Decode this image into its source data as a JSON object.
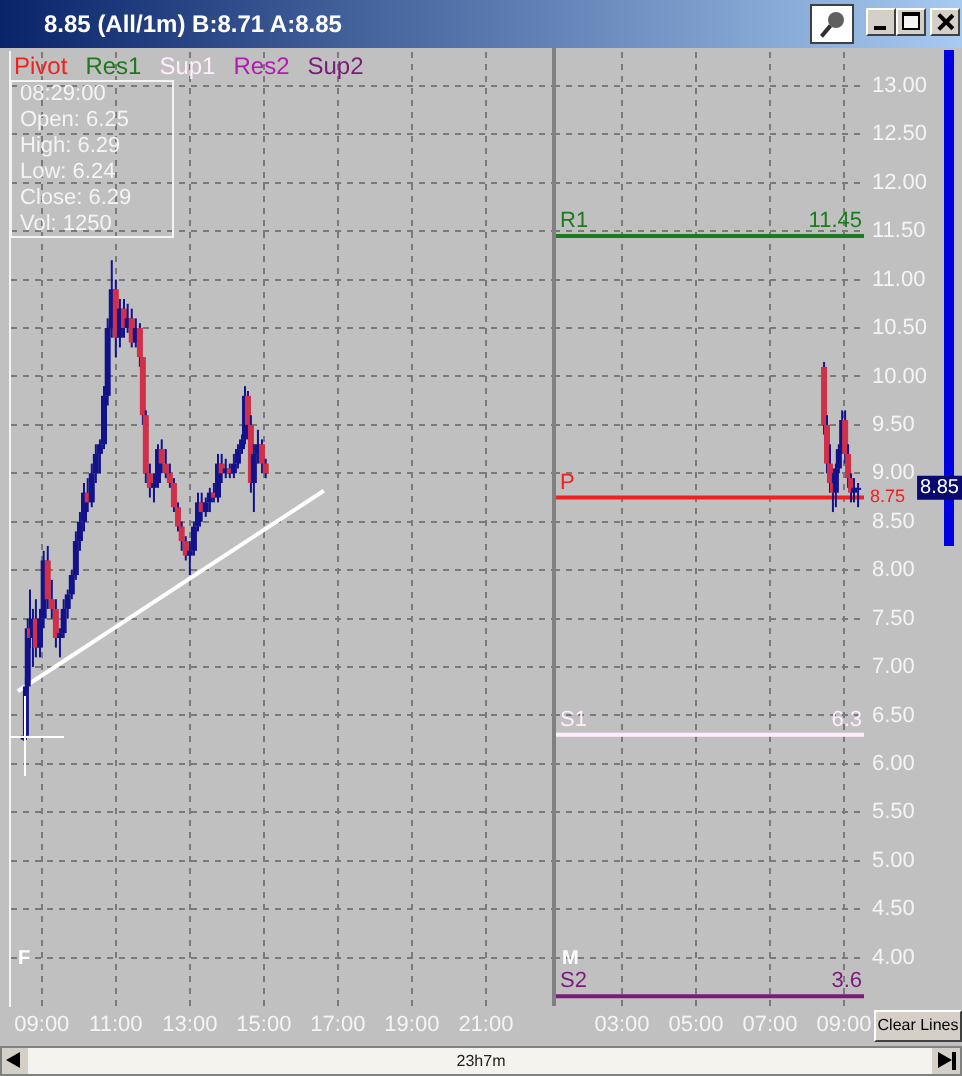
{
  "chart_data": [
    {
      "type": "candlestick",
      "title": "8.85 (All/1m) B:8.71 A:8.85",
      "color": "#12128a",
      "x": [
        8.51,
        8.57,
        8.62,
        8.68,
        8.76,
        8.84,
        8.95,
        9.05,
        9.16,
        9.27,
        9.38,
        9.49,
        9.59,
        9.7,
        9.81,
        9.92,
        10.03,
        10.14,
        10.24,
        10.35,
        10.46,
        10.57,
        10.68,
        10.78,
        10.89,
        11.0,
        11.11,
        11.22,
        11.32,
        11.43,
        11.54,
        11.65,
        11.73,
        11.81,
        11.92,
        12.03,
        12.14,
        12.24,
        12.35,
        12.46,
        12.57,
        12.68,
        12.78,
        12.89,
        13.0,
        13.11,
        13.22,
        13.32,
        13.43,
        13.54,
        13.65,
        13.76,
        13.86,
        13.97,
        14.08,
        14.19,
        14.3,
        14.41,
        14.49,
        14.57,
        14.65,
        14.73,
        14.84,
        14.95,
        15.05
      ],
      "ohlc": [
        [
          6.25,
          6.29,
          6.24,
          6.29
        ],
        [
          6.29,
          6.9,
          6.25,
          6.8
        ],
        [
          6.8,
          7.5,
          6.75,
          7.4
        ],
        [
          7.4,
          7.8,
          7.2,
          7.3
        ],
        [
          7.3,
          7.6,
          7.0,
          7.5
        ],
        [
          7.5,
          7.7,
          7.1,
          7.2
        ],
        [
          7.2,
          7.6,
          7.1,
          7.5
        ],
        [
          7.5,
          8.2,
          7.4,
          8.1
        ],
        [
          8.1,
          8.25,
          7.6,
          7.7
        ],
        [
          7.7,
          7.9,
          7.5,
          7.6
        ],
        [
          7.6,
          7.7,
          7.2,
          7.3
        ],
        [
          7.3,
          7.4,
          7.1,
          7.35
        ],
        [
          7.35,
          7.7,
          7.3,
          7.6
        ],
        [
          7.6,
          7.8,
          7.5,
          7.75
        ],
        [
          7.75,
          8.0,
          7.7,
          7.95
        ],
        [
          7.95,
          8.4,
          7.9,
          8.3
        ],
        [
          8.3,
          8.6,
          8.2,
          8.5
        ],
        [
          8.5,
          8.9,
          8.4,
          8.8
        ],
        [
          8.8,
          8.95,
          8.6,
          8.7
        ],
        [
          8.7,
          9.1,
          8.65,
          9.0
        ],
        [
          9.0,
          9.3,
          8.9,
          9.2
        ],
        [
          9.2,
          9.35,
          9.0,
          9.3
        ],
        [
          9.3,
          9.9,
          9.25,
          9.8
        ],
        [
          9.8,
          10.6,
          9.7,
          10.5
        ],
        [
          10.5,
          11.2,
          10.4,
          10.9
        ],
        [
          10.9,
          11.0,
          10.2,
          10.4
        ],
        [
          10.4,
          10.8,
          10.3,
          10.7
        ],
        [
          10.7,
          10.8,
          10.4,
          10.5
        ],
        [
          10.5,
          10.75,
          10.45,
          10.6
        ],
        [
          10.6,
          10.7,
          10.3,
          10.35
        ],
        [
          10.35,
          10.6,
          10.3,
          10.5
        ],
        [
          10.5,
          10.55,
          10.1,
          10.2
        ],
        [
          10.2,
          10.2,
          9.5,
          9.6
        ],
        [
          9.6,
          9.65,
          8.9,
          9.0
        ],
        [
          9.0,
          9.1,
          8.75,
          8.85
        ],
        [
          8.85,
          9.0,
          8.7,
          8.9
        ],
        [
          8.9,
          9.3,
          8.85,
          9.25
        ],
        [
          9.25,
          9.35,
          9.0,
          9.1
        ],
        [
          9.1,
          9.25,
          8.95,
          9.0
        ],
        [
          9.0,
          9.1,
          8.85,
          8.9
        ],
        [
          8.9,
          8.95,
          8.6,
          8.65
        ],
        [
          8.65,
          8.7,
          8.4,
          8.45
        ],
        [
          8.45,
          8.5,
          8.2,
          8.3
        ],
        [
          8.3,
          8.35,
          8.1,
          8.15
        ],
        [
          8.15,
          8.3,
          7.95,
          8.2
        ],
        [
          8.2,
          8.5,
          8.15,
          8.45
        ],
        [
          8.45,
          8.8,
          8.4,
          8.7
        ],
        [
          8.7,
          8.8,
          8.5,
          8.6
        ],
        [
          8.6,
          8.75,
          8.55,
          8.7
        ],
        [
          8.7,
          8.85,
          8.6,
          8.8
        ],
        [
          8.8,
          8.9,
          8.7,
          8.75
        ],
        [
          8.75,
          9.2,
          8.7,
          9.1
        ],
        [
          9.1,
          9.2,
          8.9,
          9.0
        ],
        [
          9.0,
          9.15,
          8.95,
          9.05
        ],
        [
          9.05,
          9.1,
          8.95,
          9.0
        ],
        [
          9.0,
          9.2,
          8.95,
          9.1
        ],
        [
          9.1,
          9.3,
          9.05,
          9.25
        ],
        [
          9.25,
          9.4,
          9.2,
          9.35
        ],
        [
          9.35,
          9.9,
          9.3,
          9.8
        ],
        [
          9.8,
          9.85,
          9.4,
          9.5
        ],
        [
          9.5,
          9.6,
          8.8,
          8.9
        ],
        [
          8.9,
          9.3,
          8.6,
          9.2
        ],
        [
          9.2,
          9.45,
          9.1,
          9.3
        ],
        [
          9.3,
          9.35,
          9.0,
          9.1
        ],
        [
          9.1,
          9.15,
          8.95,
          9.0
        ]
      ],
      "colors": [
        "#12128a",
        "#12128a",
        "#12128a",
        "#d03048",
        "#12128a",
        "#d03048",
        "#12128a",
        "#12128a",
        "#d03048",
        "#d03048",
        "#d03048",
        "#12128a",
        "#12128a",
        "#12128a",
        "#12128a",
        "#12128a",
        "#12128a",
        "#12128a",
        "#d03048",
        "#12128a",
        "#12128a",
        "#12128a",
        "#12128a",
        "#12128a",
        "#12128a",
        "#d03048",
        "#12128a",
        "#d03048",
        "#12128a",
        "#d03048",
        "#12128a",
        "#d03048",
        "#d03048",
        "#d03048",
        "#d03048",
        "#12128a",
        "#12128a",
        "#d03048",
        "#d03048",
        "#d03048",
        "#d03048",
        "#d03048",
        "#d03048",
        "#d03048",
        "#12128a",
        "#12128a",
        "#12128a",
        "#d03048",
        "#12128a",
        "#12128a",
        "#d03048",
        "#12128a",
        "#d03048",
        "#12128a",
        "#d03048",
        "#12128a",
        "#12128a",
        "#12128a",
        "#12128a",
        "#d03048",
        "#d03048",
        "#12128a",
        "#12128a",
        "#d03048",
        "#d03048"
      ],
      "series": [
        {
          "type": "line",
          "color": "#ffffff",
          "x": [
            8.35,
            16.62
          ],
          "values": [
            6.75,
            8.82
          ]
        }
      ],
      "xlim": [
        8.14,
        22.84
      ],
      "xticks": [
        {
          "value": 9,
          "label": "09:00"
        },
        {
          "value": 11,
          "label": "11:00"
        },
        {
          "value": 13,
          "label": "13:00"
        },
        {
          "value": 15,
          "label": "15:00"
        },
        {
          "value": 17,
          "label": "17:00"
        },
        {
          "value": 19,
          "label": "19:00"
        },
        {
          "value": 21,
          "label": "21:00"
        }
      ],
      "ylim": [
        3.5,
        13.35
      ],
      "yticks": [
        4,
        4.5,
        5,
        5.5,
        6,
        6.5,
        7,
        7.5,
        8,
        8.5,
        9,
        9.5,
        10,
        10.5,
        11,
        11.5,
        12,
        12.5,
        13
      ],
      "grid": true,
      "tick_labels": "x",
      "marker": "none",
      "annotations": [
        "08:29:00",
        "Open: 6.25",
        "High: 6.29",
        "Low: 6.24",
        "Close: 6.29",
        "Vol: 1250",
        "F",
        "23h7m"
      ]
    },
    {
      "type": "candlestick",
      "color": "#12128a",
      "x": [
        8.46,
        8.54,
        8.62,
        8.7,
        8.78,
        8.86,
        8.95,
        9.03,
        9.11,
        9.19,
        9.27,
        9.38
      ],
      "ohlc": [
        [
          10.1,
          10.15,
          9.4,
          9.5
        ],
        [
          9.5,
          9.6,
          9.0,
          9.1
        ],
        [
          9.1,
          9.3,
          8.8,
          8.9
        ],
        [
          8.9,
          9.0,
          8.6,
          8.8
        ],
        [
          8.8,
          9.1,
          8.65,
          9.05
        ],
        [
          9.05,
          9.3,
          9.0,
          9.25
        ],
        [
          9.25,
          9.65,
          9.2,
          9.55
        ],
        [
          9.55,
          9.65,
          9.1,
          9.2
        ],
        [
          9.2,
          9.3,
          8.85,
          8.95
        ],
        [
          8.95,
          9.0,
          8.7,
          8.8
        ],
        [
          8.8,
          8.95,
          8.7,
          8.85
        ],
        [
          8.85,
          8.9,
          8.65,
          8.85
        ]
      ],
      "colors": [
        "#d03048",
        "#d03048",
        "#d03048",
        "#d03048",
        "#12128a",
        "#12128a",
        "#12128a",
        "#d03048",
        "#d03048",
        "#d03048",
        "#12128a",
        "#12128a"
      ],
      "series": [
        {
          "name": "Pivot",
          "type": "line",
          "color": "#ee2020",
          "x": [
            1.16,
            9.54
          ],
          "values": [
            8.75,
            8.75
          ],
          "value_labels": [
            null,
            "8.75"
          ]
        },
        {
          "name": "Res1",
          "type": "line",
          "color": "#1e7a1e",
          "x": [
            1.16,
            9.54
          ],
          "values": [
            11.45,
            11.45
          ],
          "value_labels": [
            null,
            "11.45"
          ]
        },
        {
          "name": "Sup1",
          "type": "line",
          "color": "#ffedfd",
          "x": [
            1.16,
            9.54
          ],
          "values": [
            6.3,
            6.3
          ],
          "value_labels": [
            null,
            "6.3"
          ]
        },
        {
          "name": "Res2",
          "type": "line",
          "color": "#b01cb0",
          "values": [
            null,
            null,
            null,
            null,
            null,
            null,
            null,
            null,
            null,
            null,
            null,
            null
          ]
        },
        {
          "name": "Sup2",
          "type": "line",
          "color": "#7a1a7a",
          "x": [
            1.16,
            9.54
          ],
          "values": [
            3.6,
            3.6
          ],
          "value_labels": [
            null,
            "3.6"
          ]
        }
      ],
      "xlim": [
        1.16,
        9.54
      ],
      "xticks": [
        {
          "value": 3,
          "label": "03:00"
        },
        {
          "value": 5,
          "label": "05:00"
        },
        {
          "value": 7,
          "label": "07:00"
        },
        {
          "value": 9,
          "label": "09:00"
        }
      ],
      "ylim": [
        3.5,
        13.35
      ],
      "yticks": [
        {
          "value": 4,
          "label": "4.00"
        },
        {
          "value": 4.5,
          "label": "4.50"
        },
        {
          "value": 5,
          "label": "5.00"
        },
        {
          "value": 5.5,
          "label": "5.50"
        },
        {
          "value": 6,
          "label": "6.00"
        },
        {
          "value": 6.5,
          "label": "6.50"
        },
        {
          "value": 7,
          "label": "7.00"
        },
        {
          "value": 7.5,
          "label": "7.50"
        },
        {
          "value": 8,
          "label": "8.00"
        },
        {
          "value": 8.5,
          "label": "8.50"
        },
        {
          "value": 9,
          "label": "9.00"
        },
        {
          "value": 9.5,
          "label": "9.50"
        },
        {
          "value": 10,
          "label": "10.00"
        },
        {
          "value": 10.5,
          "label": "10.50"
        },
        {
          "value": 11,
          "label": "11.00"
        },
        {
          "value": 11.5,
          "label": "11.50"
        },
        {
          "value": 12,
          "label": "12.00"
        },
        {
          "value": 12.5,
          "label": "12.50"
        },
        {
          "value": 13,
          "label": "13.00"
        }
      ],
      "grid": true,
      "legend": "top left",
      "marker": "none",
      "annotations": [
        "M",
        {
          "text": "R1",
          "y": 11.45
        },
        {
          "text": "P",
          "y": 8.75
        },
        {
          "text": "S1",
          "y": 6.3
        },
        {
          "text": "S2",
          "y": 3.6
        },
        "8.85",
        "Clear Lines"
      ]
    }
  ]
}
